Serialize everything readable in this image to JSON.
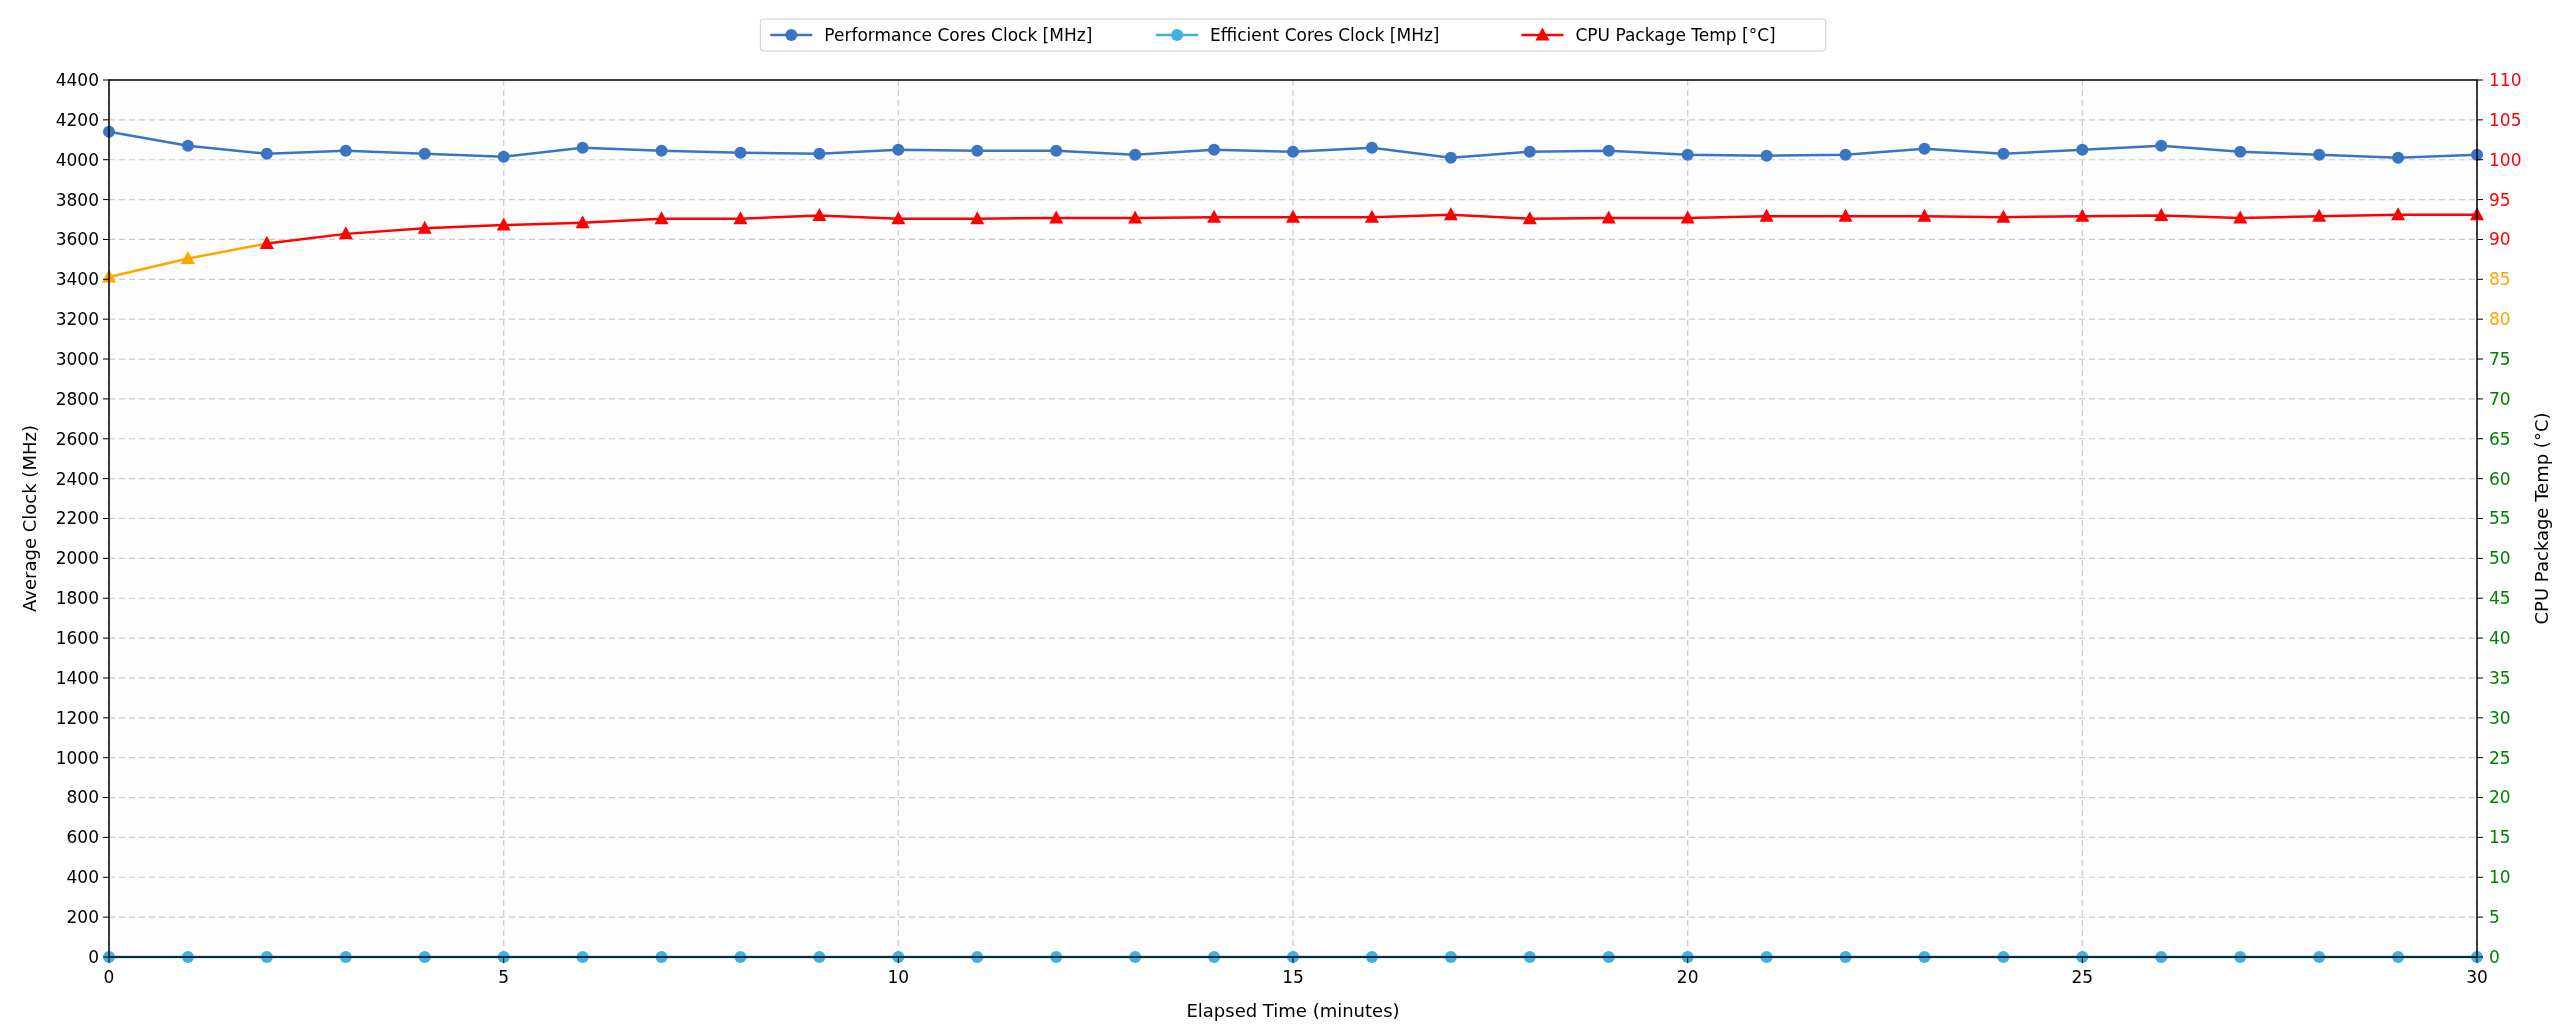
{
  "chart_data": {
    "type": "line",
    "xlabel": "Elapsed Time (minutes)",
    "ylabel": "Average Clock (MHz)",
    "y2label": "CPU Package Temp (°C)",
    "x": [
      0,
      1,
      2,
      3,
      4,
      5,
      6,
      7,
      8,
      9,
      10,
      11,
      12,
      13,
      14,
      15,
      16,
      17,
      18,
      19,
      20,
      21,
      22,
      23,
      24,
      25,
      26,
      27,
      28,
      29,
      30
    ],
    "xlim": [
      0,
      30
    ],
    "xticks": [
      0,
      5,
      10,
      15,
      20,
      25,
      30
    ],
    "ylim": [
      0,
      4400
    ],
    "yticks": [
      0,
      200,
      400,
      600,
      800,
      1000,
      1200,
      1400,
      1600,
      1800,
      2000,
      2200,
      2400,
      2600,
      2800,
      3000,
      3200,
      3400,
      3600,
      3800,
      4000,
      4200,
      4400
    ],
    "y2lim": [
      0,
      110
    ],
    "y2ticks": [
      0,
      5,
      10,
      15,
      20,
      25,
      30,
      35,
      40,
      45,
      50,
      55,
      60,
      65,
      70,
      75,
      80,
      85,
      90,
      95,
      100,
      105,
      110
    ],
    "grid": true,
    "legend": "top",
    "series": [
      {
        "name": "Performance Cores Clock [MHz]",
        "color": "#3a75c4",
        "marker": "circle",
        "values": [
          4140,
          4070,
          4030,
          4045,
          4030,
          4015,
          4060,
          4045,
          4035,
          4030,
          4050,
          4045,
          4045,
          4025,
          4050,
          4040,
          4060,
          4010,
          4040,
          4045,
          4025,
          4020,
          4025,
          4055,
          4030,
          4050,
          4070,
          4040,
          4025,
          4010,
          4025
        ]
      },
      {
        "name": "Efficient Cores Clock [MHz]",
        "color": "#41b0e4",
        "marker": "circle",
        "values": [
          0,
          0,
          0,
          0,
          0,
          0,
          0,
          0,
          0,
          0,
          0,
          0,
          0,
          0,
          0,
          0,
          0,
          0,
          0,
          0,
          0,
          0,
          0,
          0,
          0,
          0,
          0,
          0,
          0,
          0,
          0
        ]
      },
      {
        "color": "#ffa500",
        "marker": "triangle",
        "axis": "y2",
        "x": [
          0,
          1,
          2
        ],
        "values": [
          85.3,
          87.6,
          89.5
        ]
      },
      {
        "name": "CPU Package Temp [°C]",
        "color": "#ff0000",
        "marker": "triangle",
        "axis": "y2",
        "x": [
          2,
          3,
          4,
          5,
          6,
          7,
          8,
          9,
          10,
          11,
          12,
          13,
          14,
          15,
          16,
          17,
          18,
          19,
          20,
          21,
          22,
          23,
          24,
          25,
          26,
          27,
          28,
          29,
          30
        ],
        "values": [
          89.5,
          90.7,
          91.4,
          91.8,
          92.1,
          92.6,
          92.6,
          93.0,
          92.6,
          92.6,
          92.7,
          92.7,
          92.8,
          92.8,
          92.8,
          93.1,
          92.6,
          92.7,
          92.7,
          92.9,
          92.9,
          92.9,
          92.8,
          92.9,
          93.0,
          92.7,
          92.9,
          93.1,
          93.1
        ]
      }
    ]
  }
}
